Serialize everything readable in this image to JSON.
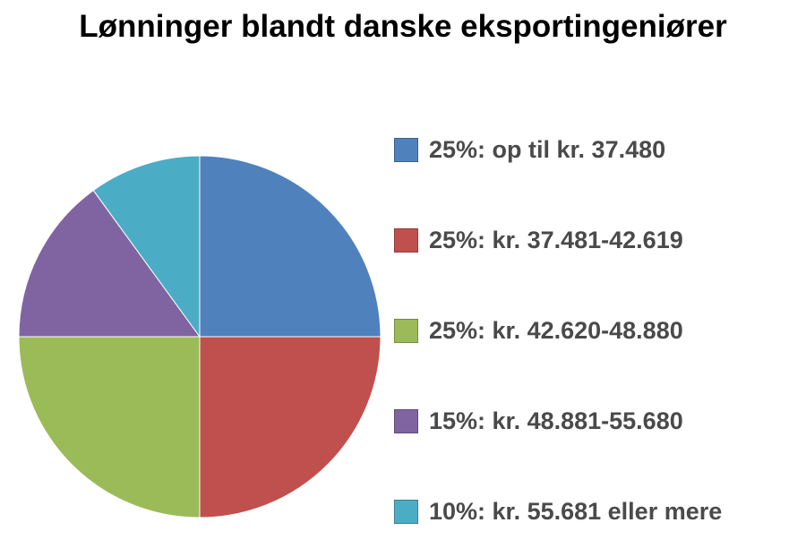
{
  "chart_data": {
    "type": "pie",
    "title": "Lønninger blandt danske eksportingeniører",
    "categories": [
      "25%: op til kr. 37.480",
      "25%: kr. 37.481-42.619",
      "25%: kr. 42.620-48.880",
      "15%: kr. 48.881-55.680",
      "10%: kr. 55.681 eller mere"
    ],
    "values": [
      25,
      25,
      25,
      15,
      10
    ],
    "colors": [
      "#4F81BD",
      "#C0504D",
      "#9BBB59",
      "#8064A2",
      "#4BACC6"
    ],
    "legend": "right"
  }
}
